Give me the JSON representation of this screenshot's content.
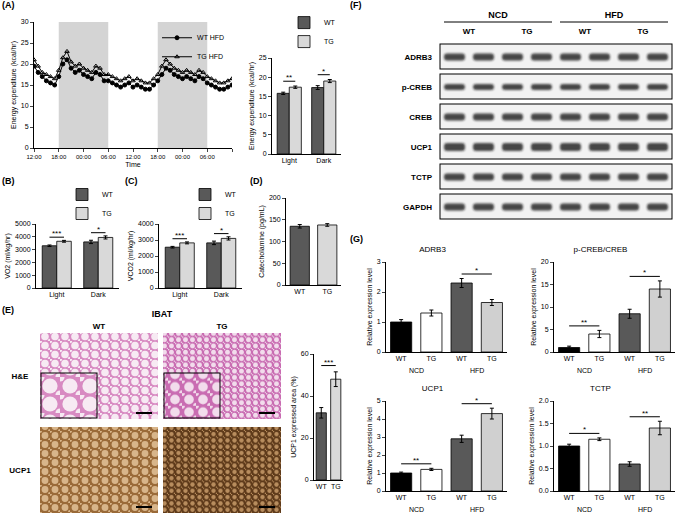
{
  "chart_data": [
    {
      "type": "line",
      "x_label": "Time",
      "y_label": "Energy expenditure (kcal/hr)",
      "x": [
        0,
        1,
        2,
        3,
        4,
        5,
        6,
        7,
        8,
        9,
        10,
        11,
        12,
        13,
        14,
        15,
        16,
        17,
        18,
        19,
        20,
        21,
        22,
        23,
        24,
        25,
        26,
        27,
        28,
        29,
        30,
        31,
        32,
        33,
        34,
        35,
        36,
        37,
        38,
        39,
        40,
        41,
        42,
        43,
        44,
        45,
        46,
        47,
        48
      ],
      "xlim": [
        0,
        48
      ],
      "xticks": [
        {
          "value": 0,
          "label": "12:00"
        },
        {
          "value": 6,
          "label": "18:00"
        },
        {
          "value": 12,
          "label": "00:00"
        },
        {
          "value": 18,
          "label": "06:00"
        },
        {
          "value": 24,
          "label": "12:00"
        },
        {
          "value": 30,
          "label": "18:00"
        },
        {
          "value": 36,
          "label": "00:00"
        },
        {
          "value": 42,
          "label": "06:00"
        },
        {
          "value": 48,
          "label": "12:00"
        }
      ],
      "ylim": [
        0,
        30
      ],
      "yticks": [
        0,
        5,
        10,
        15,
        20,
        25,
        30
      ],
      "shaded": [
        [
          6,
          18
        ],
        [
          30,
          42
        ]
      ],
      "legend": "top right",
      "series": [
        {
          "name": "WT HFD",
          "color": "#000000",
          "marker": "circle",
          "values": [
            19.5,
            18,
            17,
            16,
            15.5,
            15,
            17,
            20,
            21,
            19,
            18,
            18.5,
            17.5,
            17,
            16.5,
            18,
            17.5,
            16,
            16,
            15.5,
            15,
            14.5,
            15,
            15.5,
            14.5,
            15,
            14.5,
            14,
            14,
            15,
            16,
            17.5,
            19,
            18.5,
            17.5,
            17,
            16.5,
            17,
            16.5,
            16,
            17,
            16.5,
            15.5,
            15,
            14.5,
            14,
            14,
            14.5,
            15
          ]
        },
        {
          "name": "TG HFD",
          "color": "#000000",
          "marker": "open triangle",
          "values": [
            21,
            19.5,
            18,
            17.5,
            17,
            16.5,
            18.5,
            21.5,
            23,
            20.5,
            19.5,
            20,
            19,
            18.5,
            18,
            19.5,
            19,
            17.5,
            17.5,
            17,
            16.5,
            16,
            16.5,
            17,
            16,
            16.5,
            16,
            15.5,
            15.5,
            16.5,
            17.5,
            19.5,
            21,
            20,
            19,
            18.5,
            18,
            18.5,
            18,
            17.5,
            18.5,
            18,
            17,
            16.5,
            16,
            15.5,
            15.5,
            16,
            16.5
          ]
        }
      ]
    },
    {
      "type": "bar",
      "y_label": "Energy expenditure (kcal/hr)",
      "categories": [
        "Light",
        "Dark"
      ],
      "ylim": [
        0,
        25
      ],
      "yticks": [
        0,
        5,
        10,
        15,
        20,
        25
      ],
      "legend": "top right",
      "series": [
        {
          "name": "WT",
          "color": "#595959",
          "values": [
            15.8,
            17.3
          ],
          "errors": [
            0.3,
            0.5
          ]
        },
        {
          "name": "TG",
          "color": "#d9d9d9",
          "values": [
            17.4,
            19.0
          ],
          "errors": [
            0.3,
            0.4
          ]
        }
      ],
      "significance": [
        {
          "category": "Light",
          "label": "**"
        },
        {
          "category": "Dark",
          "label": "*"
        }
      ]
    },
    {
      "type": "bar",
      "y_label": "VO2 (ml/kg/hr)",
      "categories": [
        "Light",
        "Dark"
      ],
      "ylim": [
        0,
        5000
      ],
      "yticks": [
        0,
        1000,
        2000,
        3000,
        4000,
        5000
      ],
      "legend": "top right",
      "series": [
        {
          "name": "WT",
          "color": "#595959",
          "values": [
            3300,
            3600
          ],
          "errors": [
            60,
            130
          ]
        },
        {
          "name": "TG",
          "color": "#d9d9d9",
          "values": [
            3650,
            3950
          ],
          "errors": [
            70,
            120
          ]
        }
      ],
      "significance": [
        {
          "category": "Light",
          "label": "***"
        },
        {
          "category": "Dark",
          "label": "*"
        }
      ]
    },
    {
      "type": "bar",
      "y_label": "VCO2 (ml/kg/hr)",
      "categories": [
        "Light",
        "Dark"
      ],
      "ylim": [
        0,
        4000
      ],
      "yticks": [
        0,
        1000,
        2000,
        3000,
        4000
      ],
      "legend": "top right",
      "series": [
        {
          "name": "WT",
          "color": "#595959",
          "values": [
            2550,
            2820
          ],
          "errors": [
            50,
            110
          ]
        },
        {
          "name": "TG",
          "color": "#d9d9d9",
          "values": [
            2820,
            3100
          ],
          "errors": [
            60,
            100
          ]
        }
      ],
      "significance": [
        {
          "category": "Light",
          "label": "***"
        },
        {
          "category": "Dark",
          "label": "*"
        }
      ]
    },
    {
      "type": "bar",
      "y_label": "Catecholamine (pg/mL)",
      "categories": [
        "WT",
        "TG"
      ],
      "ylim": [
        0,
        200
      ],
      "yticks": [
        0,
        50,
        100,
        150,
        200
      ],
      "values": [
        135,
        138
      ],
      "errors": [
        4,
        3
      ],
      "colors": [
        "#595959",
        "#d9d9d9"
      ]
    },
    {
      "type": "bar",
      "y_label": "UCP1 expressed area (%)",
      "categories": [
        "WT",
        "TG"
      ],
      "ylim": [
        0,
        60
      ],
      "yticks": [
        0,
        20,
        40,
        60
      ],
      "values": [
        32,
        48
      ],
      "errors": [
        2.5,
        3.5
      ],
      "colors": [
        "#595959",
        "#d9d9d9"
      ],
      "significance": [
        {
          "between": [
            0,
            1
          ],
          "label": "***"
        }
      ]
    },
    {
      "type": "bar",
      "title": "ADRB3",
      "y_label": "Relative expression level",
      "categories": [
        "WT",
        "TG",
        "WT",
        "TG"
      ],
      "groups": [
        {
          "label": "NCD",
          "span": [
            0,
            1
          ]
        },
        {
          "label": "HFD",
          "span": [
            2,
            3
          ]
        }
      ],
      "ylim": [
        0,
        3
      ],
      "yticks": [
        0,
        1,
        2,
        3
      ],
      "values": [
        1.0,
        1.3,
        2.3,
        1.65
      ],
      "errors": [
        0.08,
        0.1,
        0.15,
        0.1
      ],
      "colors": [
        "#000000",
        "#ffffff",
        "#595959",
        "#d0d0d0"
      ],
      "significance": [
        {
          "between": [
            2,
            3
          ],
          "label": "*"
        }
      ]
    },
    {
      "type": "bar",
      "title": "p-CREB/CREB",
      "y_label": "Relative expression level",
      "categories": [
        "WT",
        "TG",
        "WT",
        "TG"
      ],
      "groups": [
        {
          "label": "NCD",
          "span": [
            0,
            1
          ]
        },
        {
          "label": "HFD",
          "span": [
            2,
            3
          ]
        }
      ],
      "ylim": [
        0,
        20
      ],
      "yticks": [
        0,
        5,
        10,
        15,
        20
      ],
      "values": [
        1.0,
        4.0,
        8.5,
        14.0
      ],
      "errors": [
        0.3,
        0.8,
        1.0,
        1.8
      ],
      "colors": [
        "#000000",
        "#ffffff",
        "#595959",
        "#d0d0d0"
      ],
      "significance": [
        {
          "between": [
            0,
            1
          ],
          "label": "**"
        },
        {
          "between": [
            2,
            3
          ],
          "label": "*"
        }
      ]
    },
    {
      "type": "bar",
      "title": "UCP1",
      "y_label": "Relative expression level",
      "categories": [
        "WT",
        "TG",
        "WT",
        "TG"
      ],
      "groups": [
        {
          "label": "NCD",
          "span": [
            0,
            1
          ]
        },
        {
          "label": "HFD",
          "span": [
            2,
            3
          ]
        }
      ],
      "ylim": [
        0,
        5
      ],
      "yticks": [
        0,
        1,
        2,
        3,
        4,
        5
      ],
      "values": [
        1.0,
        1.2,
        2.9,
        4.3
      ],
      "errors": [
        0.05,
        0.06,
        0.2,
        0.3
      ],
      "colors": [
        "#000000",
        "#ffffff",
        "#595959",
        "#d0d0d0"
      ],
      "significance": [
        {
          "between": [
            0,
            1
          ],
          "label": "**"
        },
        {
          "between": [
            2,
            3
          ],
          "label": "*"
        }
      ]
    },
    {
      "type": "bar",
      "title": "TCTP",
      "y_label": "Relative expression level",
      "categories": [
        "WT",
        "TG",
        "WT",
        "TG"
      ],
      "groups": [
        {
          "label": "NCD",
          "span": [
            0,
            1
          ]
        },
        {
          "label": "HFD",
          "span": [
            2,
            3
          ]
        }
      ],
      "ylim": [
        0,
        2
      ],
      "yticks": [
        {
          "value": 0,
          "label": "0.0"
        },
        {
          "value": 0.5,
          "label": "0.5"
        },
        {
          "value": 1,
          "label": "1.0"
        },
        {
          "value": 1.5,
          "label": "1.5"
        },
        {
          "value": 2,
          "label": "2.0"
        }
      ],
      "values": [
        1.0,
        1.15,
        0.6,
        1.4
      ],
      "errors": [
        0.04,
        0.03,
        0.05,
        0.15
      ],
      "colors": [
        "#000000",
        "#ffffff",
        "#595959",
        "#d0d0d0"
      ],
      "significance": [
        {
          "between": [
            0,
            1
          ],
          "label": "*"
        },
        {
          "between": [
            2,
            3
          ],
          "label": "**"
        }
      ]
    }
  ],
  "panels": [
    "(A)",
    "(B)",
    "(C)",
    "(D)",
    "(E)",
    "(F)",
    "(G)"
  ],
  "histology": {
    "title": "IBAT",
    "columns": [
      "WT",
      "TG"
    ],
    "rows": [
      "H&E",
      "UCP1"
    ]
  },
  "blot": {
    "groups": [
      "NCD",
      "HFD"
    ],
    "lanes": [
      "WT",
      "TG",
      "WT",
      "TG"
    ],
    "rows": [
      "ADRB3",
      "p-CREB",
      "CREB",
      "UCP1",
      "TCTP",
      "GAPDH"
    ]
  }
}
